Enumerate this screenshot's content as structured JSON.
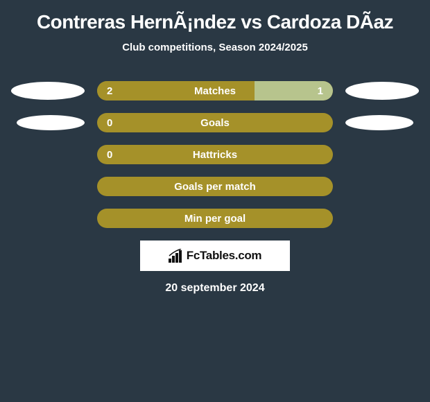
{
  "title": "Contreras HernÃ¡ndez vs Cardoza DÃ­az",
  "subtitle": "Club competitions, Season 2024/2025",
  "date": "20 september 2024",
  "logo_text": "FcTables.com",
  "colors": {
    "background": "#2a3844",
    "bar_base": "#a59129",
    "bar_light": "#b7c48d",
    "text": "#ffffff",
    "logo_bg": "#ffffff",
    "logo_text": "#111111"
  },
  "rows": [
    {
      "label": "Matches",
      "left_val": "2",
      "right_val": "1",
      "left_pct": 66.7,
      "right_pct": 33.3,
      "left_color": "#a59129",
      "right_color": "#b7c48d",
      "show_left_ellipse": true,
      "show_right_ellipse": true,
      "ellipse_size": "large"
    },
    {
      "label": "Goals",
      "left_val": "0",
      "right_val": "",
      "left_pct": 100,
      "right_pct": 0,
      "left_color": "#a59129",
      "right_color": "#a59129",
      "show_left_ellipse": true,
      "show_right_ellipse": true,
      "ellipse_size": "small"
    },
    {
      "label": "Hattricks",
      "left_val": "0",
      "right_val": "",
      "left_pct": 100,
      "right_pct": 0,
      "left_color": "#a59129",
      "right_color": "#a59129",
      "show_left_ellipse": false,
      "show_right_ellipse": false,
      "ellipse_size": "none"
    },
    {
      "label": "Goals per match",
      "left_val": "",
      "right_val": "",
      "left_pct": 100,
      "right_pct": 0,
      "left_color": "#a59129",
      "right_color": "#a59129",
      "show_left_ellipse": false,
      "show_right_ellipse": false,
      "ellipse_size": "none"
    },
    {
      "label": "Min per goal",
      "left_val": "",
      "right_val": "",
      "left_pct": 100,
      "right_pct": 0,
      "left_color": "#a59129",
      "right_color": "#a59129",
      "show_left_ellipse": false,
      "show_right_ellipse": false,
      "ellipse_size": "none"
    }
  ]
}
